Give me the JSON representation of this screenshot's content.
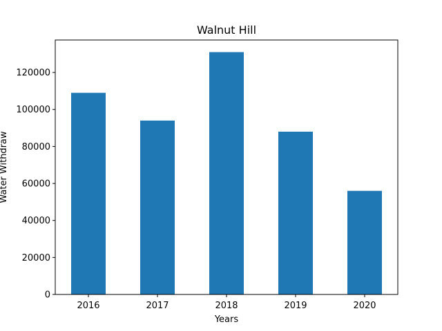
{
  "chart_data": {
    "type": "bar",
    "title": "Walnut Hill",
    "xlabel": "Years",
    "ylabel": "Water Withdraw",
    "categories": [
      "2016",
      "2017",
      "2018",
      "2019",
      "2020"
    ],
    "values": [
      109000,
      94000,
      131000,
      88000,
      56000
    ],
    "ylim": [
      0,
      137550
    ],
    "yticks": [
      0,
      20000,
      40000,
      60000,
      80000,
      100000,
      120000
    ],
    "bar_color": "#1f77b4",
    "grid": false,
    "legend": "none"
  }
}
